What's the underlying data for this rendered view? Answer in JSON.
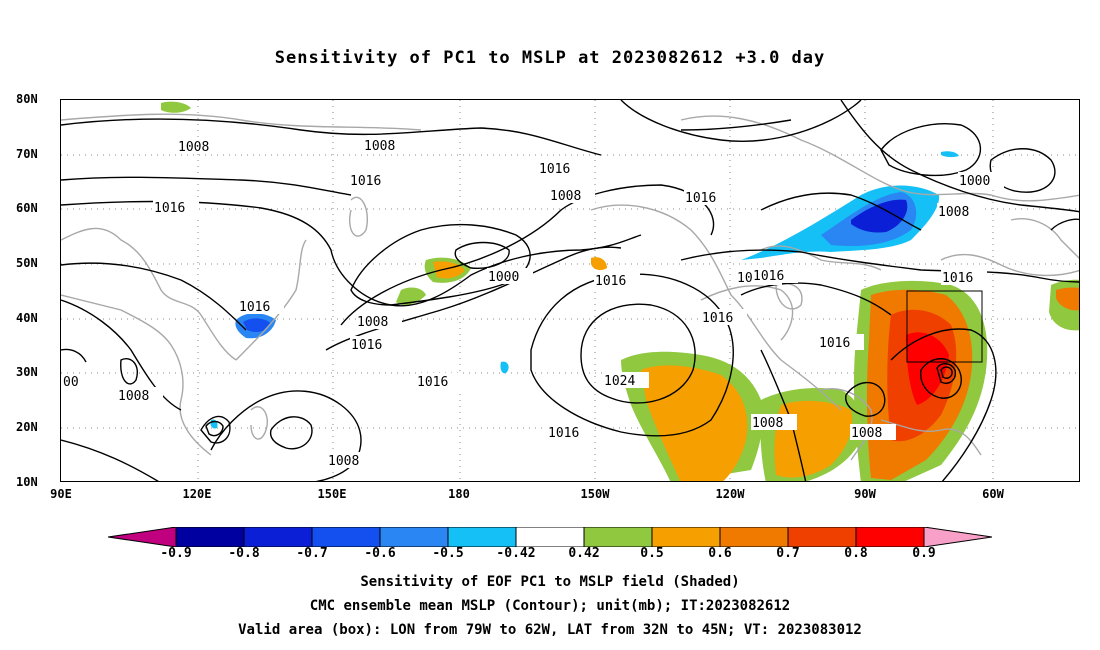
{
  "title": "Sensitivity of PC1 to MSLP at 2023082612 +3.0 day",
  "lat_labels": [
    "80N",
    "70N",
    "60N",
    "50N",
    "40N",
    "30N",
    "20N",
    "10N"
  ],
  "lon_labels": [
    "90E",
    "120E",
    "150E",
    "180",
    "150W",
    "120W",
    "90W",
    "60W"
  ],
  "contour_labels": [
    "1008",
    "1008",
    "1016",
    "1016",
    "1016",
    "1008",
    "1016",
    "1016",
    "1008",
    "1000",
    "1016",
    "1016",
    "1000",
    "1008",
    "1016",
    "1016",
    "1008",
    "1016",
    "1016",
    "1016",
    "1016",
    "1024",
    "1016",
    "1008",
    "1008",
    "1008",
    "00"
  ],
  "colorbar": {
    "labels": [
      "-0.9",
      "-0.8",
      "-0.7",
      "-0.6",
      "-0.5",
      "-0.42",
      "0.42",
      "0.5",
      "0.6",
      "0.7",
      "0.8",
      "0.9"
    ],
    "colors": [
      "#c0007f",
      "#0000a0",
      "#0a1fd6",
      "#1450f0",
      "#2a86f2",
      "#14c0f5",
      "#ffffff",
      "#90c840",
      "#f5a000",
      "#f07a00",
      "#f04000",
      "#ff0000",
      "#f8a0c8"
    ]
  },
  "caption": {
    "line1": "Sensitivity of EOF PC1 to MSLP field (Shaded)",
    "line2": "CMC ensemble mean MSLP (Contour); unit(mb); IT:2023082612",
    "line3": "Valid area (box): LON from 79W to 62W, LAT from 32N to 45N; VT: 2023083012"
  }
}
